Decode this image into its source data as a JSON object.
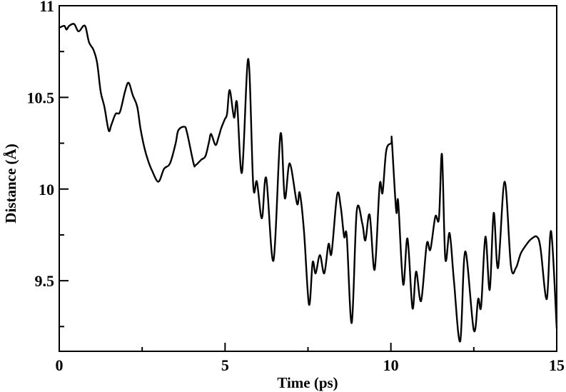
{
  "chart_data": {
    "type": "line",
    "title": "",
    "xlabel": "Time (ps)",
    "ylabel": "Distance (Å)",
    "xlim": [
      0,
      15
    ],
    "ylim": [
      9.115,
      11
    ],
    "x_ticks": [
      0,
      5,
      10,
      15
    ],
    "x_tick_labels": [
      "0",
      "5",
      "10",
      "15"
    ],
    "x_minor_ticks": [
      2.5,
      7.5,
      12.5
    ],
    "y_ticks": [
      9.5,
      10,
      10.5,
      11
    ],
    "y_tick_labels": [
      "9.5",
      "10",
      "10.5",
      "11"
    ],
    "y_minor_ticks": [
      9.25,
      9.75,
      10.25,
      10.75
    ],
    "grid": false,
    "legend": null,
    "line_color": "#000000",
    "series": [
      {
        "name": "Distance",
        "x": [
          0.0,
          0.15,
          0.22,
          0.3,
          0.45,
          0.58,
          0.73,
          0.8,
          0.9,
          1.03,
          1.14,
          1.25,
          1.36,
          1.49,
          1.57,
          1.7,
          1.83,
          1.98,
          2.09,
          2.22,
          2.35,
          2.45,
          2.56,
          2.67,
          2.8,
          2.99,
          3.16,
          3.34,
          3.51,
          3.59,
          3.77,
          3.85,
          4.05,
          4.11,
          4.28,
          4.41,
          4.52,
          4.58,
          4.71,
          4.8,
          4.88,
          4.99,
          5.06,
          5.14,
          5.27,
          5.36,
          5.51,
          5.7,
          5.85,
          5.96,
          6.11,
          6.24,
          6.46,
          6.67,
          6.8,
          6.95,
          7.17,
          7.25,
          7.38,
          7.53,
          7.64,
          7.73,
          7.86,
          7.99,
          8.12,
          8.21,
          8.38,
          8.49,
          8.59,
          8.67,
          8.82,
          8.97,
          9.14,
          9.23,
          9.36,
          9.51,
          9.66,
          9.75,
          9.86,
          10.01,
          10.03,
          10.16,
          10.22,
          10.37,
          10.5,
          10.65,
          10.76,
          10.91,
          11.08,
          11.19,
          11.34,
          11.45,
          11.54,
          11.64,
          11.77,
          11.9,
          12.09,
          12.24,
          12.5,
          12.63,
          12.72,
          12.85,
          12.98,
          13.1,
          13.23,
          13.43,
          13.62,
          13.77,
          13.92,
          14.14,
          14.25,
          14.4,
          14.51,
          14.7,
          14.83,
          15.0
        ],
        "y": [
          10.88,
          10.89,
          10.87,
          10.89,
          10.9,
          10.86,
          10.89,
          10.88,
          10.8,
          10.76,
          10.69,
          10.53,
          10.45,
          10.32,
          10.35,
          10.41,
          10.42,
          10.53,
          10.58,
          10.51,
          10.45,
          10.33,
          10.23,
          10.16,
          10.1,
          10.04,
          10.11,
          10.14,
          10.25,
          10.32,
          10.34,
          10.31,
          10.14,
          10.13,
          10.16,
          10.18,
          10.26,
          10.3,
          10.24,
          10.28,
          10.33,
          10.38,
          10.41,
          10.54,
          10.39,
          10.47,
          10.09,
          10.71,
          10.02,
          10.04,
          9.84,
          10.06,
          9.61,
          10.3,
          9.95,
          10.14,
          9.92,
          9.98,
          9.77,
          9.37,
          9.6,
          9.54,
          9.64,
          9.54,
          9.7,
          9.65,
          9.97,
          9.9,
          9.74,
          9.74,
          9.27,
          9.88,
          9.81,
          9.72,
          9.86,
          9.56,
          10.02,
          9.98,
          10.21,
          10.25,
          10.26,
          9.88,
          9.93,
          9.48,
          9.73,
          9.35,
          9.55,
          9.39,
          9.7,
          9.67,
          9.85,
          9.84,
          10.19,
          9.62,
          9.76,
          9.5,
          9.17,
          9.66,
          9.23,
          9.4,
          9.36,
          9.74,
          9.45,
          9.87,
          9.57,
          10.04,
          9.58,
          9.57,
          9.65,
          9.71,
          9.73,
          9.74,
          9.68,
          9.4,
          9.77,
          9.24
        ]
      }
    ]
  }
}
